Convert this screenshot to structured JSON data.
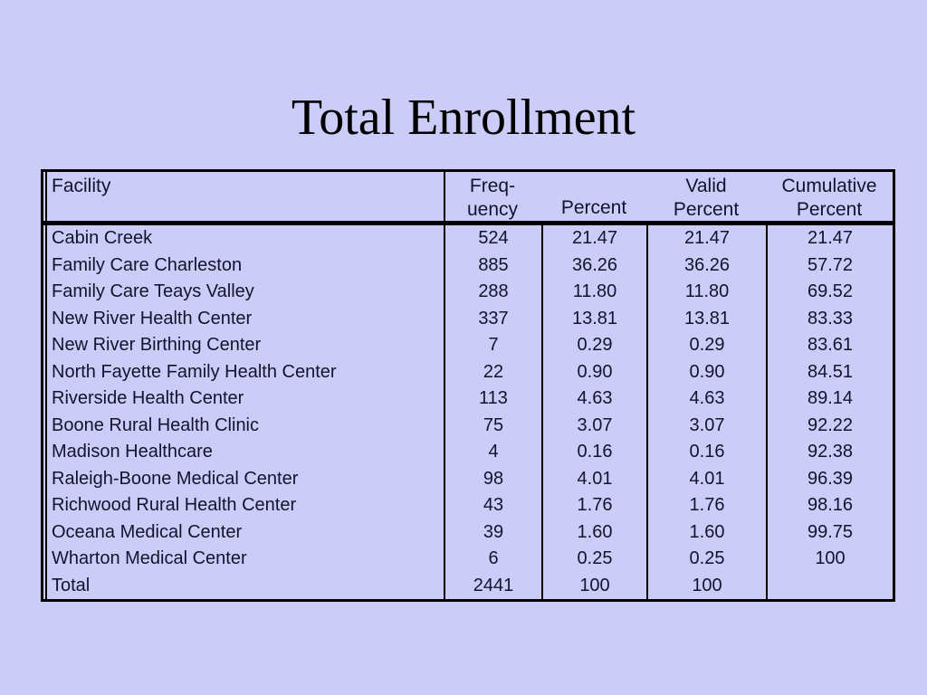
{
  "slide": {
    "title": "Total Enrollment"
  },
  "colors": {
    "background": "#CCCCF8",
    "text": "#13132E",
    "title_text": "#000000",
    "border": "#000000"
  },
  "table": {
    "header": {
      "facility": "Facility",
      "frequency_line1": "Freq-",
      "frequency_line2": "uency",
      "percent": "Percent",
      "valid_line1": "Valid",
      "valid_line2": "Percent",
      "cumulative_line1": "Cumulative",
      "cumulative_line2": "Percent"
    },
    "rows": [
      {
        "facility": "Cabin Creek",
        "frequency": "524",
        "percent": "21.47",
        "valid_percent": "21.47",
        "cumulative_percent": "21.47"
      },
      {
        "facility": "Family Care Charleston",
        "frequency": "885",
        "percent": "36.26",
        "valid_percent": "36.26",
        "cumulative_percent": "57.72"
      },
      {
        "facility": "Family Care Teays Valley",
        "frequency": "288",
        "percent": "11.80",
        "valid_percent": "11.80",
        "cumulative_percent": "69.52"
      },
      {
        "facility": "New River Health Center",
        "frequency": "337",
        "percent": "13.81",
        "valid_percent": "13.81",
        "cumulative_percent": "83.33"
      },
      {
        "facility": "New River Birthing Center",
        "frequency": "7",
        "percent": "0.29",
        "valid_percent": "0.29",
        "cumulative_percent": "83.61"
      },
      {
        "facility": "North Fayette Family Health Center",
        "frequency": "22",
        "percent": "0.90",
        "valid_percent": "0.90",
        "cumulative_percent": "84.51"
      },
      {
        "facility": "Riverside Health Center",
        "frequency": "113",
        "percent": "4.63",
        "valid_percent": "4.63",
        "cumulative_percent": "89.14"
      },
      {
        "facility": "Boone Rural Health Clinic",
        "frequency": "75",
        "percent": "3.07",
        "valid_percent": "3.07",
        "cumulative_percent": "92.22"
      },
      {
        "facility": "Madison Healthcare",
        "frequency": "4",
        "percent": "0.16",
        "valid_percent": "0.16",
        "cumulative_percent": "92.38"
      },
      {
        "facility": "Raleigh-Boone Medical Center",
        "frequency": "98",
        "percent": "4.01",
        "valid_percent": "4.01",
        "cumulative_percent": "96.39"
      },
      {
        "facility": "Richwood Rural Health Center",
        "frequency": "43",
        "percent": "1.76",
        "valid_percent": "1.76",
        "cumulative_percent": "98.16"
      },
      {
        "facility": "Oceana Medical Center",
        "frequency": "39",
        "percent": "1.60",
        "valid_percent": "1.60",
        "cumulative_percent": "99.75"
      },
      {
        "facility": "Wharton Medical Center",
        "frequency": "6",
        "percent": "0.25",
        "valid_percent": "0.25",
        "cumulative_percent": "100"
      },
      {
        "facility": "Total",
        "frequency": "2441",
        "percent": "100",
        "valid_percent": "100",
        "cumulative_percent": ""
      }
    ]
  }
}
